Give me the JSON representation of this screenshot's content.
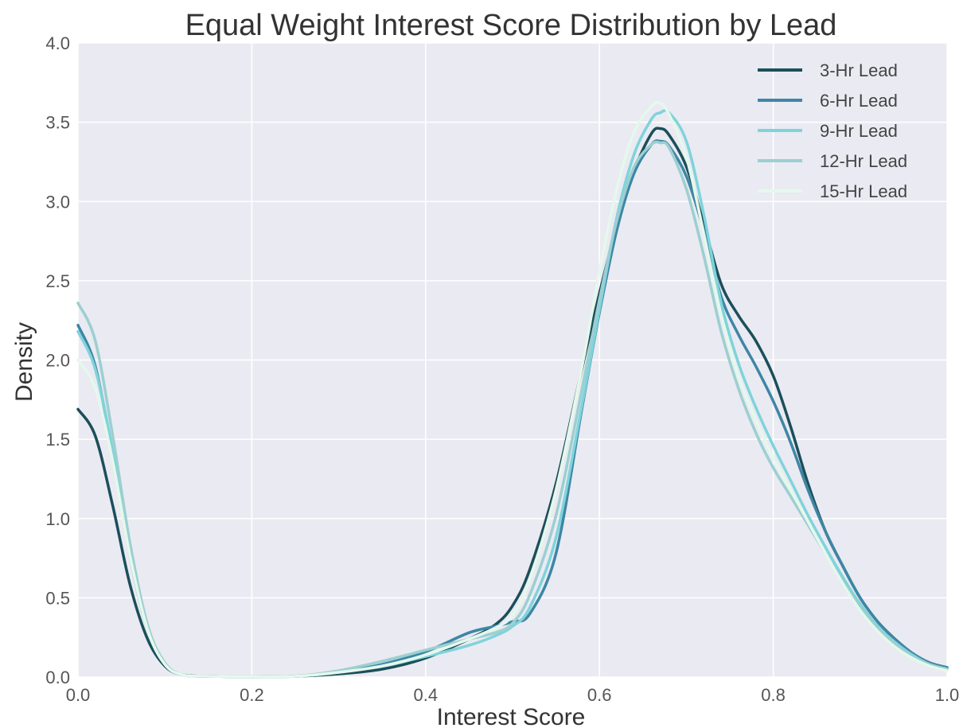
{
  "chart_data": {
    "type": "line",
    "title": "Equal Weight Interest Score Distribution by Lead",
    "xlabel": "Interest Score",
    "ylabel": "Density",
    "xlim": [
      0.0,
      1.0
    ],
    "ylim": [
      0.0,
      4.0
    ],
    "xticks": [
      "0.0",
      "0.2",
      "0.4",
      "0.6",
      "0.8",
      "1.0"
    ],
    "yticks": [
      "0.0",
      "0.5",
      "1.0",
      "1.5",
      "2.0",
      "2.5",
      "3.0",
      "3.5",
      "4.0"
    ],
    "grid": true,
    "legend_position": "top-right",
    "background": "#EAEAF2",
    "x": [
      0.0,
      0.02,
      0.04,
      0.06,
      0.08,
      0.1,
      0.12,
      0.15,
      0.2,
      0.25,
      0.3,
      0.35,
      0.4,
      0.45,
      0.48,
      0.5,
      0.52,
      0.55,
      0.58,
      0.6,
      0.62,
      0.64,
      0.66,
      0.67,
      0.68,
      0.7,
      0.72,
      0.74,
      0.76,
      0.78,
      0.8,
      0.82,
      0.84,
      0.86,
      0.88,
      0.9,
      0.92,
      0.94,
      0.96,
      0.98,
      1.0
    ],
    "series": [
      {
        "name": "3-Hr Lead",
        "color": "#1B4F5A",
        "values": [
          1.69,
          1.52,
          1.08,
          0.58,
          0.24,
          0.07,
          0.015,
          0.005,
          0.003,
          0.005,
          0.02,
          0.05,
          0.12,
          0.24,
          0.33,
          0.45,
          0.68,
          1.22,
          1.95,
          2.42,
          2.85,
          3.2,
          3.43,
          3.46,
          3.42,
          3.22,
          2.86,
          2.48,
          2.28,
          2.12,
          1.9,
          1.58,
          1.22,
          0.92,
          0.7,
          0.5,
          0.35,
          0.24,
          0.15,
          0.09,
          0.06
        ]
      },
      {
        "name": "6-Hr Lead",
        "color": "#3E86A5",
        "values": [
          2.22,
          1.96,
          1.4,
          0.76,
          0.3,
          0.08,
          0.015,
          0.005,
          0.003,
          0.005,
          0.03,
          0.08,
          0.16,
          0.28,
          0.32,
          0.35,
          0.4,
          0.78,
          1.7,
          2.3,
          2.82,
          3.18,
          3.36,
          3.38,
          3.35,
          3.16,
          2.82,
          2.4,
          2.16,
          1.96,
          1.74,
          1.48,
          1.18,
          0.92,
          0.7,
          0.5,
          0.35,
          0.24,
          0.15,
          0.09,
          0.06
        ]
      },
      {
        "name": "9-Hr Lead",
        "color": "#7FD3DB",
        "values": [
          2.18,
          1.94,
          1.42,
          0.78,
          0.3,
          0.08,
          0.015,
          0.005,
          0.003,
          0.005,
          0.03,
          0.07,
          0.13,
          0.2,
          0.26,
          0.32,
          0.44,
          0.88,
          1.72,
          2.32,
          2.9,
          3.3,
          3.52,
          3.56,
          3.56,
          3.38,
          2.92,
          2.36,
          1.98,
          1.7,
          1.46,
          1.24,
          1.02,
          0.82,
          0.63,
          0.46,
          0.32,
          0.22,
          0.14,
          0.08,
          0.05
        ]
      },
      {
        "name": "12-Hr Lead",
        "color": "#9CCFD0",
        "values": [
          2.36,
          2.12,
          1.52,
          0.84,
          0.33,
          0.09,
          0.015,
          0.005,
          0.003,
          0.006,
          0.04,
          0.1,
          0.17,
          0.24,
          0.28,
          0.34,
          0.52,
          1.02,
          1.82,
          2.38,
          2.88,
          3.22,
          3.36,
          3.37,
          3.34,
          3.08,
          2.66,
          2.18,
          1.82,
          1.54,
          1.32,
          1.14,
          0.96,
          0.78,
          0.6,
          0.44,
          0.31,
          0.21,
          0.13,
          0.08,
          0.05
        ]
      },
      {
        "name": "15-Hr Lead",
        "color": "#E5F8EC",
        "values": [
          2.0,
          1.82,
          1.36,
          0.76,
          0.3,
          0.08,
          0.015,
          0.005,
          0.003,
          0.005,
          0.03,
          0.07,
          0.14,
          0.24,
          0.31,
          0.39,
          0.62,
          1.18,
          1.96,
          2.56,
          3.08,
          3.44,
          3.6,
          3.62,
          3.55,
          3.28,
          2.8,
          2.28,
          1.9,
          1.62,
          1.38,
          1.18,
          0.98,
          0.78,
          0.59,
          0.42,
          0.29,
          0.19,
          0.12,
          0.07,
          0.04
        ]
      }
    ]
  }
}
